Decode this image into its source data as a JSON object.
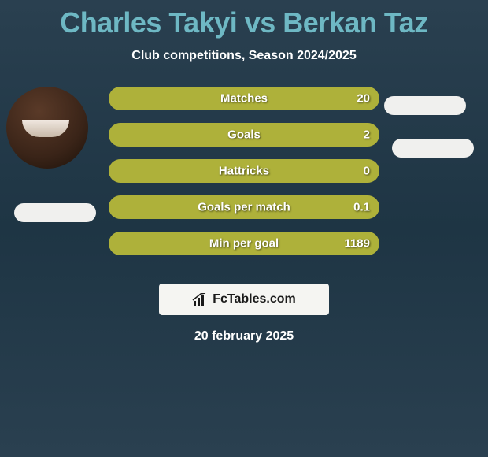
{
  "title": "Charles Takyi vs Berkan Taz",
  "subtitle": "Club competitions, Season 2024/2025",
  "date": "20 february 2025",
  "colors": {
    "bar_fill": "#aeb13a",
    "bar_empty": "#8a8c3c",
    "pill": "#f0f0ee",
    "logo_bg": "#f5f5f2",
    "logo_text": "#1a1a1a",
    "title": "#6eb8c4",
    "text": "#ffffff"
  },
  "stats": [
    {
      "label": "Matches",
      "value": "20",
      "fill_pct": 100
    },
    {
      "label": "Goals",
      "value": "2",
      "fill_pct": 100
    },
    {
      "label": "Hattricks",
      "value": "0",
      "fill_pct": 100
    },
    {
      "label": "Goals per match",
      "value": "0.1",
      "fill_pct": 100
    },
    {
      "label": "Min per goal",
      "value": "1189",
      "fill_pct": 100
    }
  ],
  "logo": {
    "text": "FcTables.com"
  }
}
